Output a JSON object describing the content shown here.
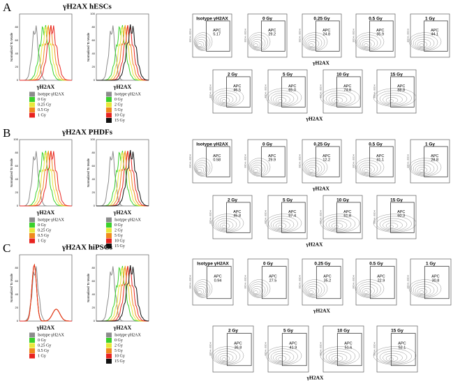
{
  "panels": [
    {
      "letter": "A",
      "title": "γH2AX hESCs",
      "histograms": [
        {
          "y_label": "Normalized To Mode",
          "x_label": "γH2AX",
          "yticks": [
            "0",
            "20",
            "40",
            "60",
            "80"
          ],
          "legend": [
            {
              "name": "Isotype γH2AX",
              "color": "#8c8c8c"
            },
            {
              "name": "0 Gy",
              "color": "#39d12b"
            },
            {
              "name": "0.25 Gy",
              "color": "#e8e83a"
            },
            {
              "name": "0.5 Gy",
              "color": "#f08a1c"
            },
            {
              "name": "1 Gy",
              "color": "#e8231f"
            }
          ]
        },
        {
          "y_label": "Normalized To Mode",
          "x_label": "γH2AX",
          "yticks": [
            "0",
            "20",
            "40",
            "60",
            "80",
            "100"
          ],
          "legend": [
            {
              "name": "Isotype γH2AX",
              "color": "#8c8c8c"
            },
            {
              "name": "0 Gy",
              "color": "#39d12b"
            },
            {
              "name": "2 Gy",
              "color": "#e8e83a"
            },
            {
              "name": "5 Gy",
              "color": "#f08a1c"
            },
            {
              "name": "10 Gy",
              "color": "#e8231f"
            },
            {
              "name": "15 Gy",
              "color": "#111111"
            }
          ]
        }
      ],
      "contours": {
        "y_label": "SSC-H :: SSC-H",
        "rows": [
          {
            "x_label": "γH2AX",
            "plots": [
              {
                "dose": "Isotype γH2AX",
                "gate": "APC",
                "percent": "5.17"
              },
              {
                "dose": "0 Gy",
                "gate": "APC",
                "percent": "29.2"
              },
              {
                "dose": "0.25 Gy",
                "gate": "APC",
                "percent": "24.8"
              },
              {
                "dose": "0.5 Gy",
                "gate": "APC",
                "percent": "35.9"
              },
              {
                "dose": "1 Gy",
                "gate": "APC",
                "percent": "44.1"
              }
            ]
          },
          {
            "x_label": "γH2AX",
            "plots": [
              {
                "dose": "2 Gy",
                "gate": "APC",
                "percent": "46.5"
              },
              {
                "dose": "5 Gy",
                "gate": "APC",
                "percent": "65.0"
              },
              {
                "dose": "10 Gy",
                "gate": "APC",
                "percent": "74.8"
              },
              {
                "dose": "15 Gy",
                "gate": "APC",
                "percent": "88.8"
              }
            ]
          }
        ]
      }
    },
    {
      "letter": "B",
      "title": "γH2AX PHDFs",
      "histograms": [
        {
          "y_label": "Normalized To Mode",
          "x_label": "γH2AX",
          "yticks": [
            "0",
            "20",
            "40",
            "60",
            "80",
            "100"
          ],
          "legend": [
            {
              "name": "Isotype γH2AX",
              "color": "#8c8c8c"
            },
            {
              "name": "0 Gy",
              "color": "#39d12b"
            },
            {
              "name": "0.25 Gy",
              "color": "#e8e83a"
            },
            {
              "name": "0.5 Gy",
              "color": "#f08a1c"
            },
            {
              "name": "1 Gy",
              "color": "#e8231f"
            }
          ]
        },
        {
          "y_label": "Normalized To Mode",
          "x_label": "γH2AX",
          "yticks": [
            "0",
            "20",
            "40",
            "60",
            "80",
            "100"
          ],
          "legend": [
            {
              "name": "Isotype γH2AX",
              "color": "#8c8c8c"
            },
            {
              "name": "0 Gy",
              "color": "#39d12b"
            },
            {
              "name": "2 Gy",
              "color": "#e8e83a"
            },
            {
              "name": "5 Gy",
              "color": "#f08a1c"
            },
            {
              "name": "10 Gy",
              "color": "#e8231f"
            },
            {
              "name": "15 Gy",
              "color": "#111111"
            }
          ]
        }
      ],
      "contours": {
        "y_label": "SSC-H :: SSC-H",
        "rows": [
          {
            "x_label": "γH2AX",
            "plots": [
              {
                "dose": "Isotype γH2AX",
                "gate": "APC",
                "percent": "0.58"
              },
              {
                "dose": "0 Gy",
                "gate": "APC",
                "percent": "29.9"
              },
              {
                "dose": "0.25 Gy",
                "gate": "APC",
                "percent": "12.2"
              },
              {
                "dose": "0.5 Gy",
                "gate": "APC",
                "percent": "31.1"
              },
              {
                "dose": "1 Gy",
                "gate": "APC",
                "percent": "28.8"
              }
            ]
          },
          {
            "x_label": "γH2AX",
            "plots": [
              {
                "dose": "2 Gy",
                "gate": "APC",
                "percent": "45.8"
              },
              {
                "dose": "5 Gy",
                "gate": "APC",
                "percent": "57.4"
              },
              {
                "dose": "10 Gy",
                "gate": "APC",
                "percent": "61.8"
              },
              {
                "dose": "15 Gy",
                "gate": "APC",
                "percent": "60.3"
              }
            ]
          }
        ]
      }
    },
    {
      "letter": "C",
      "title": "γH2AX hiPSCs",
      "histograms": [
        {
          "y_label": "Normalized To Mode",
          "x_label": "γH2AX",
          "yticks": [
            "0",
            "20",
            "40",
            "60",
            "80"
          ],
          "legend": [
            {
              "name": "Isotype γH2AX",
              "color": "#8c8c8c"
            },
            {
              "name": "0 Gy",
              "color": "#39d12b"
            },
            {
              "name": "0.25 Gy",
              "color": "#e8e83a"
            },
            {
              "name": "0.5 Gy",
              "color": "#f08a1c"
            },
            {
              "name": "1 Gy",
              "color": "#e8231f"
            }
          ]
        },
        {
          "y_label": "Normalized To Mode",
          "x_label": "γH2AX",
          "yticks": [
            "0",
            "20",
            "40",
            "60",
            "80"
          ],
          "legend": [
            {
              "name": "Isotype γH2AX",
              "color": "#8c8c8c"
            },
            {
              "name": "0 Gy",
              "color": "#39d12b"
            },
            {
              "name": "2 Gy",
              "color": "#e8e83a"
            },
            {
              "name": "5 Gy",
              "color": "#f08a1c"
            },
            {
              "name": "10 Gy",
              "color": "#e8231f"
            },
            {
              "name": "15 Gy",
              "color": "#111111"
            }
          ]
        }
      ],
      "contours": {
        "y_label": "SSC-H :: SSC-H",
        "rows": [
          {
            "x_label": "γH2AX",
            "plots": [
              {
                "dose": "Isotype γH2AX",
                "gate": "APC",
                "percent": "0.94"
              },
              {
                "dose": "0 Gy",
                "gate": "APC",
                "percent": "27.5"
              },
              {
                "dose": "0.25 Gy",
                "gate": "APC",
                "percent": "35.2"
              },
              {
                "dose": "0.5 Gy",
                "gate": "APC",
                "percent": "22.9"
              },
              {
                "dose": "1 Gy",
                "gate": "APC",
                "percent": "30.8"
              }
            ]
          },
          {
            "x_label": "γH2AX",
            "plots": [
              {
                "dose": "2 Gy",
                "gate": "APC",
                "percent": "36.8"
              },
              {
                "dose": "5 Gy",
                "gate": "APC",
                "percent": "41.9"
              },
              {
                "dose": "10 Gy",
                "gate": "APC",
                "percent": "51.6"
              },
              {
                "dose": "15 Gy",
                "gate": "APC",
                "percent": "52.1"
              }
            ]
          }
        ]
      }
    }
  ]
}
